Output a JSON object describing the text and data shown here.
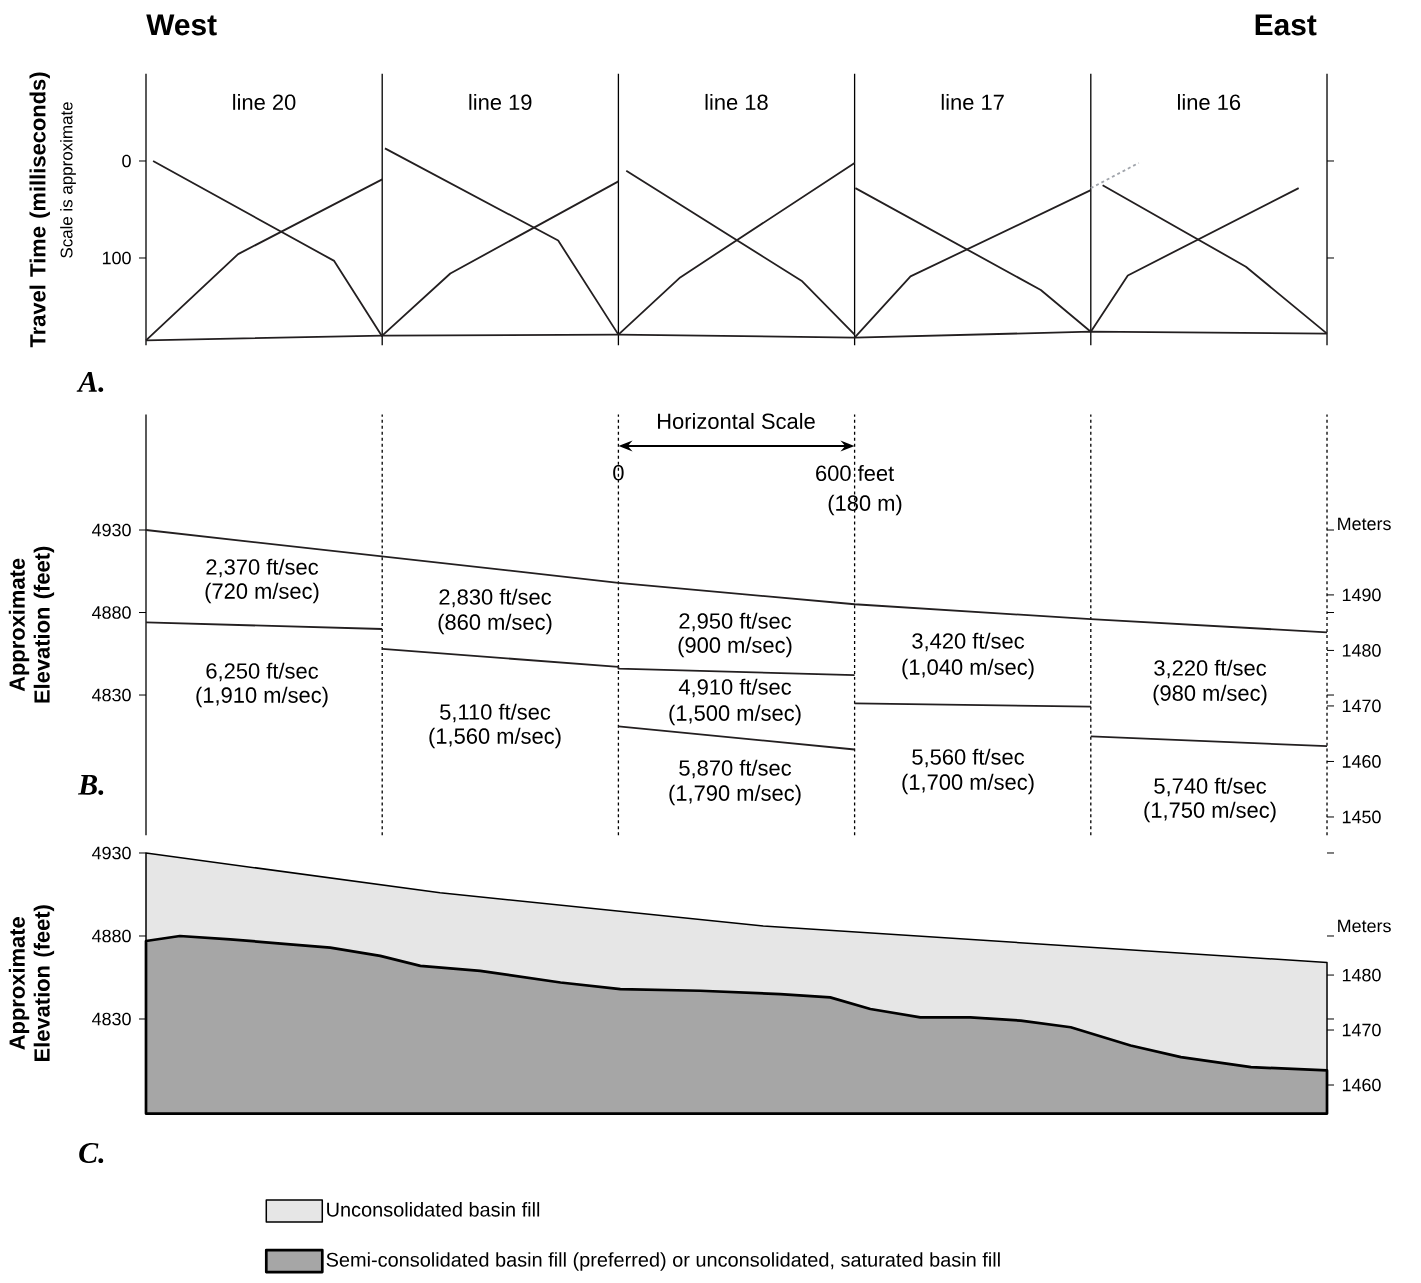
{
  "chart_data": [
    {
      "type": "line",
      "ylabel": "Travel Time (milliseconds)",
      "xlim": [
        -1200,
        1800
      ],
      "xticks": [
        {
          "value": -600,
          "label": null
        },
        0,
        600,
        {
          "value": 1200,
          "label": null
        }
      ],
      "ylim": [
        190,
        -90
      ],
      "yticks": [
        0,
        100
      ],
      "tick_labels": "y",
      "series": [
        {
          "color": "#231f20",
          "x": [
            -1182,
            -722,
            -600
          ],
          "values": [
            0,
            103,
            181
          ]
        },
        {
          "color": "#231f20",
          "x": [
            -1200,
            -966,
            -600
          ],
          "values": [
            185,
            96,
            19
          ]
        },
        {
          "color": "#231f20",
          "x": [
            -593,
            -153,
            0
          ],
          "values": [
            -13,
            82,
            179
          ]
        },
        {
          "color": "#231f20",
          "x": [
            -600,
            -427,
            0
          ],
          "values": [
            180,
            116,
            21
          ]
        },
        {
          "color": "#231f20",
          "x": [
            20,
            467,
            600
          ],
          "values": [
            10,
            124,
            179
          ]
        },
        {
          "color": "#231f20",
          "x": [
            0,
            157,
            600
          ],
          "values": [
            179,
            120,
            2
          ]
        },
        {
          "color": "#231f20",
          "x": [
            602,
            1073,
            1200
          ],
          "values": [
            28,
            133,
            176
          ]
        },
        {
          "color": "#231f20",
          "x": [
            600,
            742,
            1200
          ],
          "values": [
            182,
            119,
            30
          ]
        },
        {
          "color": "#231f20",
          "x": [
            1230,
            1594,
            1800
          ],
          "values": [
            25,
            109,
            178
          ]
        },
        {
          "color": "#231f20",
          "x": [
            1200,
            1294,
            1728
          ],
          "values": [
            176,
            118,
            28
          ]
        },
        {
          "color": "#a0a4ab",
          "line_style": "dashed",
          "x": [
            1200,
            1322
          ],
          "values": [
            28,
            2
          ]
        },
        {
          "color": "#231f20",
          "x": [
            -1200,
            -600,
            0,
            600,
            1200,
            1800
          ],
          "values": [
            185,
            180,
            179,
            182,
            176,
            178
          ]
        }
      ],
      "ref_lines": [
        {
          "axis": "x",
          "value": -600,
          "line_style": "solid"
        },
        {
          "axis": "x",
          "value": 0,
          "line_style": "solid"
        },
        {
          "axis": "x",
          "value": 600,
          "line_style": "solid"
        },
        {
          "axis": "x",
          "value": 1200,
          "line_style": "solid"
        }
      ],
      "annotations": [
        "West",
        "East",
        "A.",
        "Scale is approximate",
        "line 20",
        "line 19",
        "line 18",
        "line 17",
        "line 16"
      ]
    },
    {
      "type": "line",
      "ylabel": "Approximate Elevation (feet)",
      "y2label": "Meters",
      "xlim": [
        -1200,
        1800
      ],
      "xticks": [
        {
          "value": -600,
          "label": null
        },
        0,
        {
          "value": 600,
          "label": "600 feet"
        },
        {
          "value": 1200,
          "label": null
        }
      ],
      "ylim": [
        4745,
        5000
      ],
      "yticks": [
        4830,
        4880,
        4930
      ],
      "y2lim": [
        1446.7,
        1522.5
      ],
      "y2ticks": [
        1450,
        1460,
        1470,
        1480,
        1490
      ],
      "series": [
        {
          "color": "#231f20",
          "x": [
            -1200,
            -600,
            0,
            600,
            1200,
            1800
          ],
          "values": [
            4930,
            4914,
            4898,
            4885,
            4876,
            4868
          ]
        },
        {
          "color": "#231f20",
          "x": [
            -1200,
            -600
          ],
          "values": [
            4874,
            4870
          ]
        },
        {
          "color": "#231f20",
          "x": [
            -600,
            0,
            0,
            600
          ],
          "values": [
            4858,
            4847,
            4846,
            4842
          ]
        },
        {
          "color": "#231f20",
          "x": [
            600,
            1200
          ],
          "values": [
            4825,
            4823
          ]
        },
        {
          "color": "#231f20",
          "x": [
            0,
            600
          ],
          "values": [
            4811,
            4797
          ]
        },
        {
          "color": "#231f20",
          "x": [
            1200,
            1800
          ],
          "values": [
            4805,
            4799
          ]
        }
      ],
      "ref_lines": [
        {
          "axis": "x",
          "value": -600,
          "line_style": "dashed"
        },
        {
          "axis": "x",
          "value": 0,
          "line_style": "dashed"
        },
        {
          "axis": "x",
          "value": 600,
          "line_style": "dashed"
        },
        {
          "axis": "x",
          "value": 1200,
          "line_style": "dashed"
        }
      ],
      "annotations": [
        "Horizontal Scale",
        "(180 m)",
        "B.",
        "2,370 ft/sec",
        "(720 m/sec)",
        "6,250 ft/sec",
        "(1,910 m/sec)",
        "2,830 ft/sec",
        "(860 m/sec)",
        "5,110 ft/sec",
        "(1,560 m/sec)",
        "2,950 ft/sec",
        "(900 m/sec)",
        "4,910 ft/sec",
        "(1,500 m/sec)",
        "5,870 ft/sec",
        "(1,790 m/sec)",
        "3,420 ft/sec",
        "(1,040 m/sec)",
        "5,560 ft/sec",
        "(1,700 m/sec)",
        "3,220 ft/sec",
        "(980 m/sec)",
        "5,740 ft/sec",
        "(1,750 m/sec)"
      ]
    },
    {
      "type": "area",
      "ylabel": "Approximate Elevation (feet)",
      "y2label": "Meters",
      "xlim": [
        -1200,
        1800
      ],
      "xticks": [
        0,
        600
      ],
      "ylim": [
        4773,
        4930
      ],
      "yticks": [
        4830,
        4880,
        4930
      ],
      "y2lim": [
        1454.8,
        1502.2
      ],
      "y2ticks": [
        1460,
        1470,
        1480
      ],
      "tick_labels": "y",
      "legend": "bottom",
      "series": [
        {
          "name": "Unconsolidated basin fill",
          "color": "#e6e6e6",
          "x": [
            -1200,
            -453,
            368,
            1800
          ],
          "values": [
            4930,
            4906,
            4886,
            4864
          ]
        },
        {
          "name": "Semi-consolidated basin fill (preferred) or unconsolidated, saturated basin fill",
          "color": "#a6a6a6",
          "x": [
            -1200,
            -1114,
            -986,
            -834,
            -732,
            -605,
            -503,
            -351,
            -147,
            5,
            208,
            411,
            538,
            640,
            767,
            894,
            1022,
            1149,
            1301,
            1429,
            1607,
            1800
          ],
          "values": [
            4877,
            4880,
            4878,
            4875,
            4873,
            4868,
            4862,
            4859,
            4852,
            4848,
            4847,
            4845,
            4843,
            4836,
            4831,
            4831,
            4829,
            4825,
            4814,
            4807,
            4801,
            4799
          ]
        }
      ],
      "annotations": [
        "C."
      ]
    }
  ]
}
